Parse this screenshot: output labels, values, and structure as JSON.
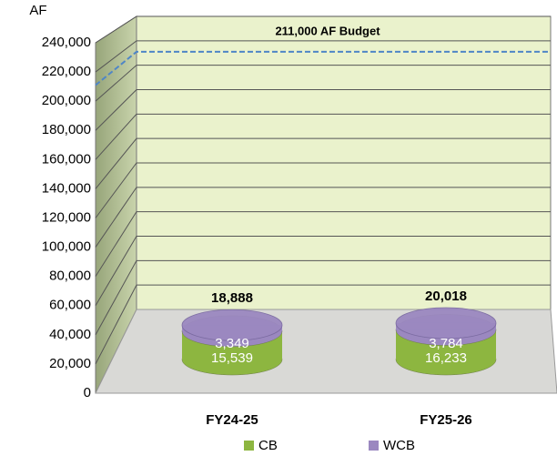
{
  "chart_data": {
    "type": "bar",
    "stacked": true,
    "y_label": "AF",
    "categories": [
      "FY24-25",
      "FY25-26"
    ],
    "series": [
      {
        "name": "CB",
        "color": "#8db640",
        "values": [
          15539,
          16233
        ],
        "value_labels": [
          "15,539",
          "16,233"
        ]
      },
      {
        "name": "WCB",
        "color": "#9b88c0",
        "values": [
          3349,
          3784
        ],
        "value_labels": [
          "3,349",
          "3,784"
        ]
      }
    ],
    "total_labels": [
      "18,888",
      "20,018"
    ],
    "budget": {
      "value": 211000,
      "label": "211,000 AF Budget",
      "color": "#4f86c6"
    },
    "ylim": [
      0,
      240000
    ],
    "yticks": [
      0,
      {
        "value": 20000,
        "label": "20,000"
      },
      {
        "value": 40000,
        "label": "40,000"
      },
      {
        "value": 60000,
        "label": "60,000"
      },
      {
        "value": 80000,
        "label": "80,000"
      },
      {
        "value": 100000,
        "label": "100,000"
      },
      {
        "value": 120000,
        "label": "120,000"
      },
      {
        "value": 140000,
        "label": "140,000"
      },
      {
        "value": 160000,
        "label": "160,000"
      },
      {
        "value": 180000,
        "label": "180,000"
      },
      {
        "value": 200000,
        "label": "200,000"
      },
      {
        "value": 220000,
        "label": "220,000"
      },
      {
        "value": 240000,
        "label": "240,000"
      }
    ],
    "grid": true,
    "legend": "bottom"
  }
}
